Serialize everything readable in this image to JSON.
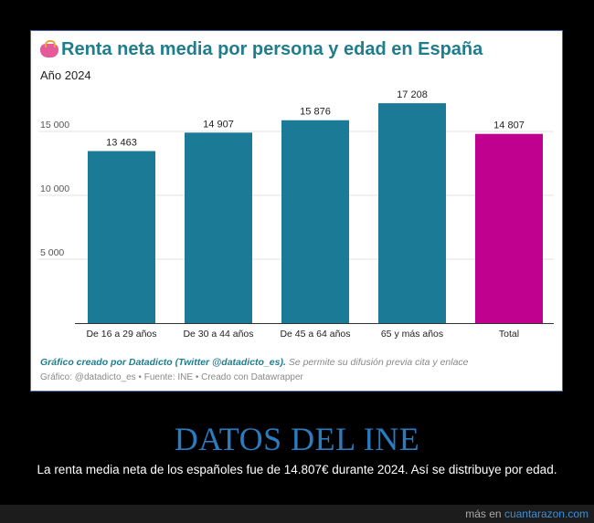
{
  "chart_data": {
    "type": "bar",
    "title": "Renta neta media por persona y edad en España",
    "subtitle": "Año 2024",
    "categories": [
      "De 16 a 29 años",
      "De 30 a 44 años",
      "De 45 a 64 años",
      "65 y más años",
      "Total"
    ],
    "values": [
      13463,
      14907,
      15876,
      17208,
      14807
    ],
    "value_labels": [
      "13 463",
      "14 907",
      "15 876",
      "17 208",
      "14 807"
    ],
    "colors": [
      "#1b7b96",
      "#1b7b96",
      "#1b7b96",
      "#1b7b96",
      "#c0008f"
    ],
    "yticks": [
      5000,
      10000,
      15000
    ],
    "ytick_labels": [
      "5 000",
      "10 000",
      "15 000"
    ],
    "ylim": [
      0,
      18000
    ],
    "grid": true,
    "xlabel": "",
    "ylabel": ""
  },
  "note": {
    "bold": "Gráfico creado por Datadicto (Twitter @datadicto_es).",
    "italic": "Se permite su difusión previa cita y enlace"
  },
  "credit": "Gráfico: @datadicto_es • Fuente: INE • Creado con Datawrapper",
  "headline": "DATOS DEL INE",
  "caption": "La renta media neta de los españoles fue de 14.807€ durante 2024. Así se distribuye por edad.",
  "footer": {
    "prefix": "más en",
    "site": "cuantarazon.com"
  }
}
